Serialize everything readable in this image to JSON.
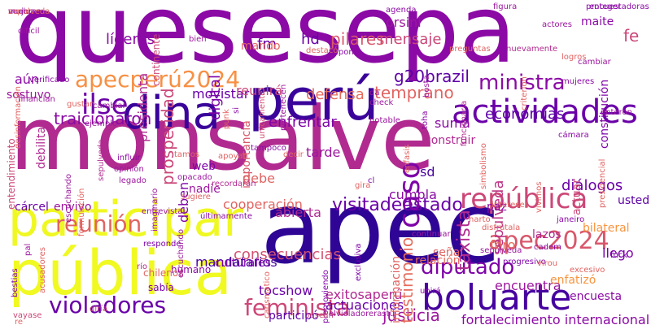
{
  "words": [
    {
      "text": "quesesepa",
      "color": "#8b0aa5"
    },
    {
      "text": "monsalve",
      "color": "#b12a90"
    },
    {
      "text": "apec",
      "color": "#2f0596"
    },
    {
      "text": "pública",
      "color": "#f0f921"
    },
    {
      "text": "participar",
      "color": "#eff821"
    },
    {
      "text": "perú",
      "color": "#3a049a"
    },
    {
      "text": "dina",
      "color": "#3a049a"
    },
    {
      "text": "actividades",
      "color": "#6a00a8"
    },
    {
      "text": "boluarte",
      "color": "#46039f"
    },
    {
      "text": "apecperú2024",
      "color": "#f79044"
    },
    {
      "text": "visitadeestado",
      "color": "#6a00a8"
    },
    {
      "text": "república",
      "color": "#cc4778"
    },
    {
      "text": "apec2024",
      "color": "#d8576b"
    },
    {
      "text": "diputado",
      "color": "#7e03a8"
    },
    {
      "text": "ministra",
      "color": "#8b0aa5"
    },
    {
      "text": "violadores",
      "color": "#6a00a8"
    },
    {
      "text": "feminista",
      "color": "#cc4778"
    },
    {
      "text": "reunión",
      "color": "#e16462"
    },
    {
      "text": "ilse",
      "color": "#6a00a8"
    },
    {
      "text": "g20brazil",
      "color": "#5c01a6"
    },
    {
      "text": "traicionaron",
      "color": "#8b0aa5"
    },
    {
      "text": "defensa",
      "color": "#e66c5c"
    },
    {
      "text": "caso",
      "color": "#7e03a8"
    },
    {
      "text": "taxista",
      "color": "#b12a90"
    },
    {
      "text": "economías",
      "color": "#5c01a6"
    },
    {
      "text": "justicia",
      "color": "#9c179e"
    },
    {
      "text": "digital",
      "color": "#7e03a8"
    },
    {
      "text": "presidenta",
      "color": "#b12a90"
    },
    {
      "text": "prosperidad",
      "color": "#cc4778"
    },
    {
      "text": "líderes",
      "color": "#8b0aa5"
    },
    {
      "text": "pilares",
      "color": "#d8576b"
    },
    {
      "text": "mensaje",
      "color": "#cc4778"
    },
    {
      "text": "orsini",
      "color": "#9c179e"
    },
    {
      "text": "enfrentar",
      "color": "#7e03a8"
    },
    {
      "text": "temprano",
      "color": "#e16462"
    },
    {
      "text": "testimonio",
      "color": "#e66c5c"
    },
    {
      "text": "sepulveda",
      "color": "#bd3786"
    },
    {
      "text": "diálogos",
      "color": "#6a00a8"
    },
    {
      "text": "consecuencias",
      "color": "#d35171"
    },
    {
      "text": "exitosaperú",
      "color": "#b12a90"
    },
    {
      "text": "encuentra",
      "color": "#9c179e"
    },
    {
      "text": "actuaciones",
      "color": "#6a00a8"
    },
    {
      "text": "fortalecimiento internacional",
      "color": "#8b0aa5"
    },
    {
      "text": "mandatarios",
      "color": "#46039f"
    },
    {
      "text": "tocshow",
      "color": "#6a00a8"
    },
    {
      "text": "participó",
      "color": "#5c01a6"
    },
    {
      "text": "cooperación",
      "color": "#e16462"
    },
    {
      "text": "cárcel",
      "color": "#6a00a8"
    },
    {
      "text": "envivo",
      "color": "#9c179e"
    },
    {
      "text": "movistar",
      "color": "#6a00a8"
    },
    {
      "text": "importancia",
      "color": "#d8576b"
    },
    {
      "text": "reunirá",
      "color": "#cc4778"
    },
    {
      "text": "construir",
      "color": "#b12a90"
    },
    {
      "text": "suma",
      "color": "#8b0aa5"
    },
    {
      "text": "debe",
      "color": "#e16462"
    },
    {
      "text": "tarde",
      "color": "#9c179e"
    },
    {
      "text": "deben",
      "color": "#7e03a8"
    },
    {
      "text": "cumpla",
      "color": "#8b0aa5"
    },
    {
      "text": "sd",
      "color": "#46039f"
    },
    {
      "text": "abierta",
      "color": "#b12a90"
    },
    {
      "text": "culturales",
      "color": "#7e03a8"
    },
    {
      "text": "humano",
      "color": "#8b0aa5"
    },
    {
      "text": "sabía",
      "color": "#7e03a8"
    },
    {
      "text": "chilenos",
      "color": "#e16462"
    },
    {
      "text": "relación",
      "color": "#e66c5c"
    },
    {
      "text": "señal",
      "color": "#e16462"
    },
    {
      "text": "encuesta",
      "color": "#8b0aa5"
    },
    {
      "text": "enfatizó",
      "color": "#f89540"
    },
    {
      "text": "bilateral",
      "color": "#f89540"
    },
    {
      "text": "lazos",
      "color": "#b12a90"
    },
    {
      "text": "llego",
      "color": "#7e03a8"
    },
    {
      "text": "foro",
      "color": "#e66c5c"
    },
    {
      "text": "actuar",
      "color": "#cc4778"
    },
    {
      "text": "usted",
      "color": "#5c01a6"
    },
    {
      "text": "constitución",
      "color": "#7e03a8"
    },
    {
      "text": "fe",
      "color": "#cc4778"
    },
    {
      "text": "maite",
      "color": "#8b0aa5"
    },
    {
      "text": "fm",
      "color": "#6a00a8"
    },
    {
      "text": "hd",
      "color": "#6a00a8"
    },
    {
      "text": "mando",
      "color": "#e16462"
    },
    {
      "text": "aún",
      "color": "#8b0aa5"
    },
    {
      "text": "sostuvo",
      "color": "#9c179e"
    },
    {
      "text": "debilita",
      "color": "#b12a90"
    },
    {
      "text": "web",
      "color": "#7e03a8"
    },
    {
      "text": "nadie",
      "color": "#9c179e"
    },
    {
      "text": "paz",
      "color": "#8b0aa5"
    },
    {
      "text": "información",
      "color": "#e16462"
    },
    {
      "text": "continente",
      "color": "#cc4778"
    },
    {
      "text": "entendimiento",
      "color": "#cc4778"
    },
    {
      "text": "sepulveda",
      "color": "#b12a90"
    },
    {
      "text": "acusadores",
      "color": "#e16462"
    },
    {
      "text": "promoviendo",
      "color": "#7e03a8"
    },
    {
      "text": "carismático",
      "color": "#e16462"
    },
    {
      "text": "bestias",
      "color": "#7e03a8"
    },
    {
      "text": "exclusiva",
      "color": "#7e03a8"
    },
    {
      "text": "progresivo",
      "color": "#7e03a8"
    },
    {
      "text": "virou",
      "color": "#e16462"
    },
    {
      "text": "cadem",
      "color": "#8b0aa5"
    },
    {
      "text": "janeiro",
      "color": "#8b0aa5"
    },
    {
      "text": "agenda",
      "color": "#8b0aa5"
    },
    {
      "text": "figura",
      "color": "#9c179e"
    },
    {
      "text": "actores",
      "color": "#9c179e"
    },
    {
      "text": "preguntas",
      "color": "#e16462"
    },
    {
      "text": "bosta",
      "color": "#9c179e"
    },
    {
      "text": "expone",
      "color": "#8b0aa5"
    },
    {
      "text": "destacó",
      "color": "#e16462"
    },
    {
      "text": "bien",
      "color": "#9c179e"
    },
    {
      "text": "difícil",
      "color": "#9c179e"
    },
    {
      "text": "verificado",
      "color": "#8b0aa5"
    },
    {
      "text": "financian",
      "color": "#9c179e"
    },
    {
      "text": "gustan",
      "color": "#e16462"
    },
    {
      "text": "cambiar",
      "color": "#9c179e"
    },
    {
      "text": "ejemplo",
      "color": "#9c179e"
    },
    {
      "text": "responde",
      "color": "#7e03a8"
    },
    {
      "text": "río",
      "color": "#b12a90"
    },
    {
      "text": "escuchando",
      "color": "#9c179e"
    },
    {
      "text": "entrevista",
      "color": "#9c179e"
    },
    {
      "text": "últimamente",
      "color": "#8b0aa5"
    },
    {
      "text": "influir",
      "color": "#8b0aa5"
    },
    {
      "text": "opinión",
      "color": "#9c179e"
    },
    {
      "text": "legado",
      "color": "#9c179e"
    },
    {
      "text": "opacado",
      "color": "#9c179e"
    },
    {
      "text": "tamos",
      "color": "#e16462"
    },
    {
      "text": "sugiere",
      "color": "#e16462"
    },
    {
      "text": "apoyan",
      "color": "#e16462"
    },
    {
      "text": "tampoco",
      "color": "#8b0aa5"
    },
    {
      "text": "check",
      "color": "#9c179e"
    },
    {
      "text": "da",
      "color": "#9c179e"
    },
    {
      "text": "cámara",
      "color": "#8b0aa5"
    },
    {
      "text": "gira",
      "color": "#e16462"
    },
    {
      "text": "intereses",
      "color": "#e16462"
    },
    {
      "text": "harto",
      "color": "#e16462"
    },
    {
      "text": "continuar",
      "color": "#9c179e"
    },
    {
      "text": "disfrútala",
      "color": "#e16462"
    },
    {
      "text": "unirá",
      "color": "#8b0aa5"
    },
    {
      "text": "excesivo",
      "color": "#e16462"
    },
    {
      "text": "fuck",
      "color": "#7e03a8"
    },
    {
      "text": "enteron",
      "color": "#9c179e"
    },
    {
      "text": "encuestadoras",
      "color": "#8b0aa5"
    },
    {
      "text": "proteger",
      "color": "#8b0aa5"
    },
    {
      "text": "mujeres",
      "color": "#8b0aa5"
    },
    {
      "text": "logros",
      "color": "#e16462"
    },
    {
      "text": "vayase",
      "color": "#cc4778"
    },
    {
      "text": "re",
      "color": "#e16462"
    },
    {
      "text": "diría",
      "color": "#cc4778"
    },
    {
      "text": "buscan",
      "color": "#cc4778"
    },
    {
      "text": "elvioladorerastu",
      "color": "#9c179e"
    },
    {
      "text": "pal",
      "color": "#9c179e"
    },
    {
      "text": "cl",
      "color": "#7e03a8"
    },
    {
      "text": "decir",
      "color": "#e16462"
    },
    {
      "text": "punk",
      "color": "#e16462"
    },
    {
      "text": "si",
      "color": "#8b0aa5"
    },
    {
      "text": "unicamente",
      "color": "#d35171"
    },
    {
      "text": "pertenecen",
      "color": "#9c179e"
    },
    {
      "text": "notable",
      "color": "#9c179e"
    },
    {
      "text": "toha",
      "color": "#8b0aa5"
    },
    {
      "text": "énfasis",
      "color": "#e16462"
    },
    {
      "text": "simbolismo",
      "color": "#e16462"
    },
    {
      "text": "presidencial",
      "color": "#e16462"
    },
    {
      "text": "vivimos",
      "color": "#e16462"
    },
    {
      "text": "criterion",
      "color": "#e16462"
    },
    {
      "text": "desinformación",
      "color": "#e16462"
    },
    {
      "text": "imaginario",
      "color": "#9c179e"
    },
    {
      "text": "formulación",
      "color": "#e16462"
    },
    {
      "text": "escuchando",
      "color": "#9c179e"
    },
    {
      "text": "funcionaria",
      "color": "#b12a90"
    },
    {
      "text": "recordarán",
      "color": "#b12a90"
    },
    {
      "text": "nuevamente",
      "color": "#b12a90"
    },
    {
      "text": "sepulveda",
      "color": "#9c179e"
    },
    {
      "text": "cambiar",
      "color": "#9c179e"
    },
    {
      "text": "mujeres",
      "color": "#8b0aa5"
    },
    {
      "text": "vuelva",
      "color": "#9c179e"
    },
    {
      "text": "sepulveda",
      "color": "#e16462"
    }
  ]
}
